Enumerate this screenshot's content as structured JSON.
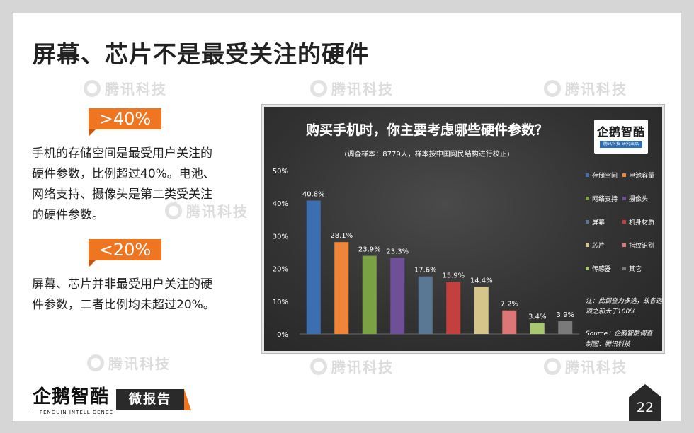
{
  "title": "屏幕、芯片不是最受关注的硬件",
  "watermark": "腾讯科技",
  "left": {
    "badge1": ">40%",
    "para1": "手机的存储空间是最受用户关注的硬件参数，比例超过40%。电池、网络支持、摄像头是第二类受关注的硬件参数。",
    "badge2": "<20%",
    "para2": "屏幕、芯片并非最受用户关注的硬件参数，二者比例均未超过20%。"
  },
  "chart_logo": {
    "name": "企鹅智酷",
    "sub": "腾讯科技 研究出品"
  },
  "chart_data": {
    "type": "bar",
    "title": "购买手机时，你主要考虑哪些硬件参数？",
    "subtitle": "(调查样本：8779人，样本按中国网民结构进行校正)",
    "categories": [
      "存储空间",
      "电池容量",
      "网络支持",
      "摄像头",
      "屏幕",
      "机身材质",
      "芯片",
      "指纹识别",
      "传感器",
      "其它"
    ],
    "values": [
      40.8,
      28.1,
      23.9,
      23.3,
      17.6,
      15.9,
      14.4,
      7.2,
      3.4,
      3.9
    ],
    "value_labels": [
      "40.8%",
      "28.1%",
      "23.9%",
      "23.3%",
      "17.6%",
      "15.9%",
      "14.4%",
      "7.2%",
      "3.4%",
      "3.9%"
    ],
    "colors": [
      "#3d6fb0",
      "#f0853a",
      "#7aa245",
      "#6f4f97",
      "#5a7794",
      "#c4403e",
      "#d6c58a",
      "#dd7777",
      "#a8c870",
      "#7a7a7a"
    ],
    "yticks": [
      "0%",
      "10%",
      "20%",
      "30%",
      "40%",
      "50%"
    ],
    "ylim": [
      0,
      50
    ],
    "grid": false,
    "legend_position": "right",
    "note": "注：此调查为多选，故各选项之和大于100%",
    "source": "Source：企鹅智酷调查",
    "credit": "制图：腾讯科技"
  },
  "footer": {
    "brand": "企鹅智酷",
    "brand_en": "PENGUIN INTELLIGENCE",
    "tag": "微报告",
    "page": "22"
  }
}
